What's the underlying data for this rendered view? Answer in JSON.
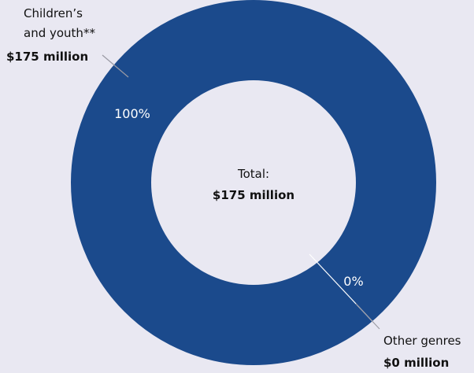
{
  "chart_data": {
    "type": "pie",
    "style": "donut",
    "center_label": "Total:",
    "center_value": "$175 million",
    "slices": [
      {
        "name_lines": [
          "Children’s",
          "and youth**"
        ],
        "value_label": "$175 million",
        "value": 175,
        "percent_label": "100%",
        "color": "#1b4a8c"
      },
      {
        "name_lines": [
          "Other genres"
        ],
        "value_label": "$0 million",
        "value": 0,
        "percent_label": "0%",
        "color": "#1b4a8c"
      }
    ],
    "colors": {
      "ring": "#1b4a8c",
      "hole": "#e9e8f2",
      "background": "#e9e8f2",
      "leader": "#9a9aa4"
    }
  }
}
